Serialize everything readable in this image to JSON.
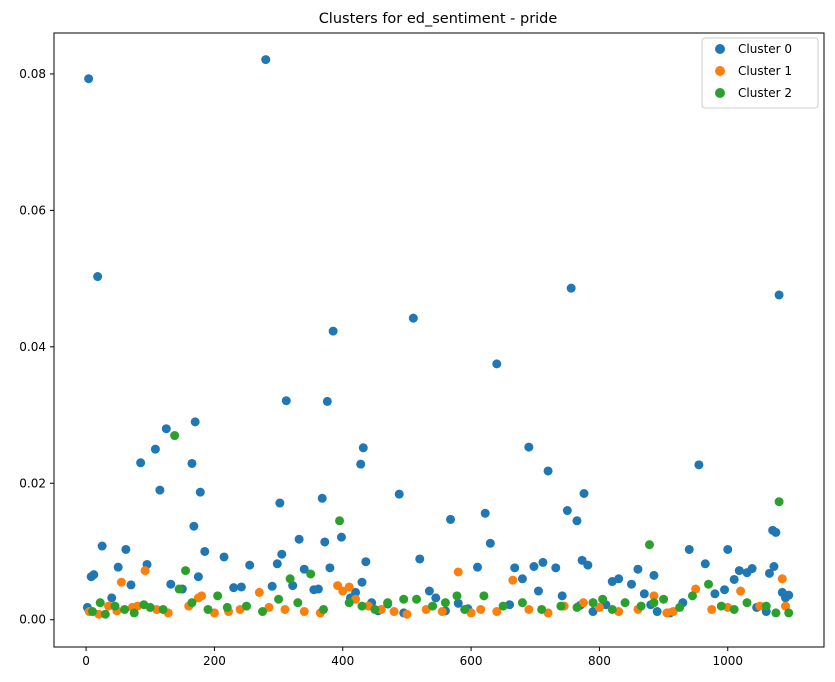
{
  "chart_data": {
    "type": "scatter",
    "title": "Clusters for ed_sentiment - pride",
    "xlabel": "",
    "ylabel": "",
    "xlim": [
      -50,
      1150
    ],
    "ylim": [
      -0.004,
      0.086
    ],
    "xticks": [
      0,
      200,
      400,
      600,
      800,
      1000
    ],
    "yticks": [
      0.0,
      0.02,
      0.04,
      0.06,
      0.08
    ],
    "xtick_labels": [
      "0",
      "200",
      "400",
      "600",
      "800",
      "1000"
    ],
    "ytick_labels": [
      "0.00",
      "0.02",
      "0.04",
      "0.06",
      "0.08"
    ],
    "grid": false,
    "legend": "top-right",
    "series": [
      {
        "name": "Cluster 0",
        "color": "#1f77b4",
        "x": [
          2,
          4,
          8,
          12,
          18,
          25,
          40,
          50,
          62,
          70,
          85,
          95,
          108,
          115,
          125,
          132,
          150,
          165,
          168,
          170,
          175,
          178,
          185,
          215,
          230,
          242,
          255,
          280,
          290,
          298,
          302,
          305,
          312,
          322,
          332,
          340,
          355,
          362,
          368,
          372,
          376,
          380,
          385,
          398,
          412,
          420,
          428,
          430,
          432,
          436,
          445,
          455,
          470,
          488,
          495,
          510,
          520,
          535,
          545,
          560,
          568,
          580,
          595,
          610,
          622,
          630,
          640,
          660,
          668,
          680,
          690,
          698,
          705,
          712,
          720,
          732,
          742,
          750,
          756,
          765,
          770,
          773,
          776,
          782,
          790,
          810,
          820,
          830,
          850,
          860,
          870,
          880,
          885,
          890,
          910,
          930,
          940,
          955,
          965,
          980,
          995,
          1000,
          1010,
          1018,
          1030,
          1038,
          1045,
          1060,
          1065,
          1070,
          1072,
          1075,
          1080,
          1085,
          1090,
          1095
        ],
        "y": [
          0.0018,
          0.0793,
          0.0063,
          0.0066,
          0.0503,
          0.0108,
          0.0032,
          0.0077,
          0.0103,
          0.0051,
          0.023,
          0.0081,
          0.025,
          0.019,
          0.028,
          0.0052,
          0.0045,
          0.0229,
          0.0137,
          0.029,
          0.0063,
          0.0187,
          0.01,
          0.0092,
          0.0047,
          0.0048,
          0.008,
          0.0821,
          0.0049,
          0.0082,
          0.0171,
          0.0096,
          0.0321,
          0.005,
          0.0118,
          0.0074,
          0.0044,
          0.0045,
          0.0178,
          0.0114,
          0.032,
          0.0076,
          0.0423,
          0.0121,
          0.0032,
          0.004,
          0.0228,
          0.0055,
          0.0252,
          0.0085,
          0.0025,
          0.0013,
          0.0023,
          0.0184,
          0.001,
          0.0442,
          0.0089,
          0.0042,
          0.0032,
          0.0013,
          0.0147,
          0.0024,
          0.0016,
          0.0077,
          0.0156,
          0.0112,
          0.0375,
          0.0022,
          0.0076,
          0.006,
          0.0253,
          0.0078,
          0.0042,
          0.0084,
          0.0218,
          0.0076,
          0.0035,
          0.016,
          0.0486,
          0.0145,
          0.0021,
          0.0087,
          0.0185,
          0.008,
          0.0012,
          0.0022,
          0.0056,
          0.006,
          0.0052,
          0.0074,
          0.0038,
          0.0022,
          0.0065,
          0.0012,
          0.001,
          0.0025,
          0.0103,
          0.0227,
          0.0082,
          0.0038,
          0.0044,
          0.0103,
          0.0059,
          0.0072,
          0.0069,
          0.0075,
          0.0018,
          0.0012,
          0.0068,
          0.0131,
          0.0078,
          0.0128,
          0.0476,
          0.004,
          0.0032,
          0.0036
        ]
      },
      {
        "name": "Cluster 1",
        "color": "#ff7f0e",
        "x": [
          5,
          20,
          35,
          48,
          55,
          72,
          80,
          92,
          110,
          128,
          160,
          175,
          180,
          200,
          222,
          240,
          270,
          285,
          310,
          340,
          365,
          392,
          400,
          410,
          420,
          440,
          460,
          480,
          500,
          530,
          555,
          580,
          600,
          615,
          640,
          665,
          690,
          720,
          745,
          775,
          800,
          830,
          860,
          885,
          905,
          915,
          950,
          975,
          1000,
          1020,
          1050,
          1085,
          1090
        ],
        "y": [
          0.0012,
          0.0008,
          0.002,
          0.0013,
          0.0055,
          0.0018,
          0.002,
          0.0072,
          0.0015,
          0.001,
          0.002,
          0.0032,
          0.0035,
          0.001,
          0.0012,
          0.0015,
          0.004,
          0.0018,
          0.0015,
          0.0012,
          0.001,
          0.005,
          0.0042,
          0.0048,
          0.003,
          0.002,
          0.0015,
          0.0012,
          0.0008,
          0.0015,
          0.0012,
          0.007,
          0.001,
          0.0015,
          0.0012,
          0.0058,
          0.0015,
          0.001,
          0.002,
          0.0025,
          0.0018,
          0.0012,
          0.0015,
          0.0035,
          0.001,
          0.0012,
          0.0045,
          0.0015,
          0.0018,
          0.0042,
          0.002,
          0.006,
          0.002
        ]
      },
      {
        "name": "Cluster 2",
        "color": "#2ca02c",
        "x": [
          10,
          22,
          30,
          45,
          60,
          75,
          90,
          100,
          120,
          138,
          145,
          155,
          165,
          190,
          205,
          220,
          250,
          275,
          300,
          318,
          330,
          350,
          370,
          395,
          410,
          430,
          450,
          470,
          495,
          515,
          540,
          560,
          578,
          590,
          620,
          650,
          680,
          710,
          740,
          765,
          790,
          805,
          820,
          840,
          865,
          878,
          885,
          900,
          925,
          945,
          970,
          990,
          1010,
          1030,
          1060,
          1075,
          1080,
          1095
        ],
        "y": [
          0.0012,
          0.0025,
          0.0008,
          0.002,
          0.0015,
          0.001,
          0.0022,
          0.0018,
          0.0015,
          0.027,
          0.0045,
          0.0072,
          0.0025,
          0.0015,
          0.0035,
          0.0018,
          0.002,
          0.0012,
          0.003,
          0.006,
          0.0025,
          0.0067,
          0.0015,
          0.0145,
          0.0025,
          0.002,
          0.0015,
          0.0025,
          0.003,
          0.003,
          0.002,
          0.0025,
          0.0035,
          0.0015,
          0.0035,
          0.002,
          0.0025,
          0.0015,
          0.002,
          0.0018,
          0.0025,
          0.003,
          0.0015,
          0.0025,
          0.002,
          0.011,
          0.0025,
          0.003,
          0.0018,
          0.0035,
          0.0052,
          0.002,
          0.0015,
          0.0025,
          0.002,
          0.001,
          0.0173,
          0.001
        ]
      }
    ]
  }
}
